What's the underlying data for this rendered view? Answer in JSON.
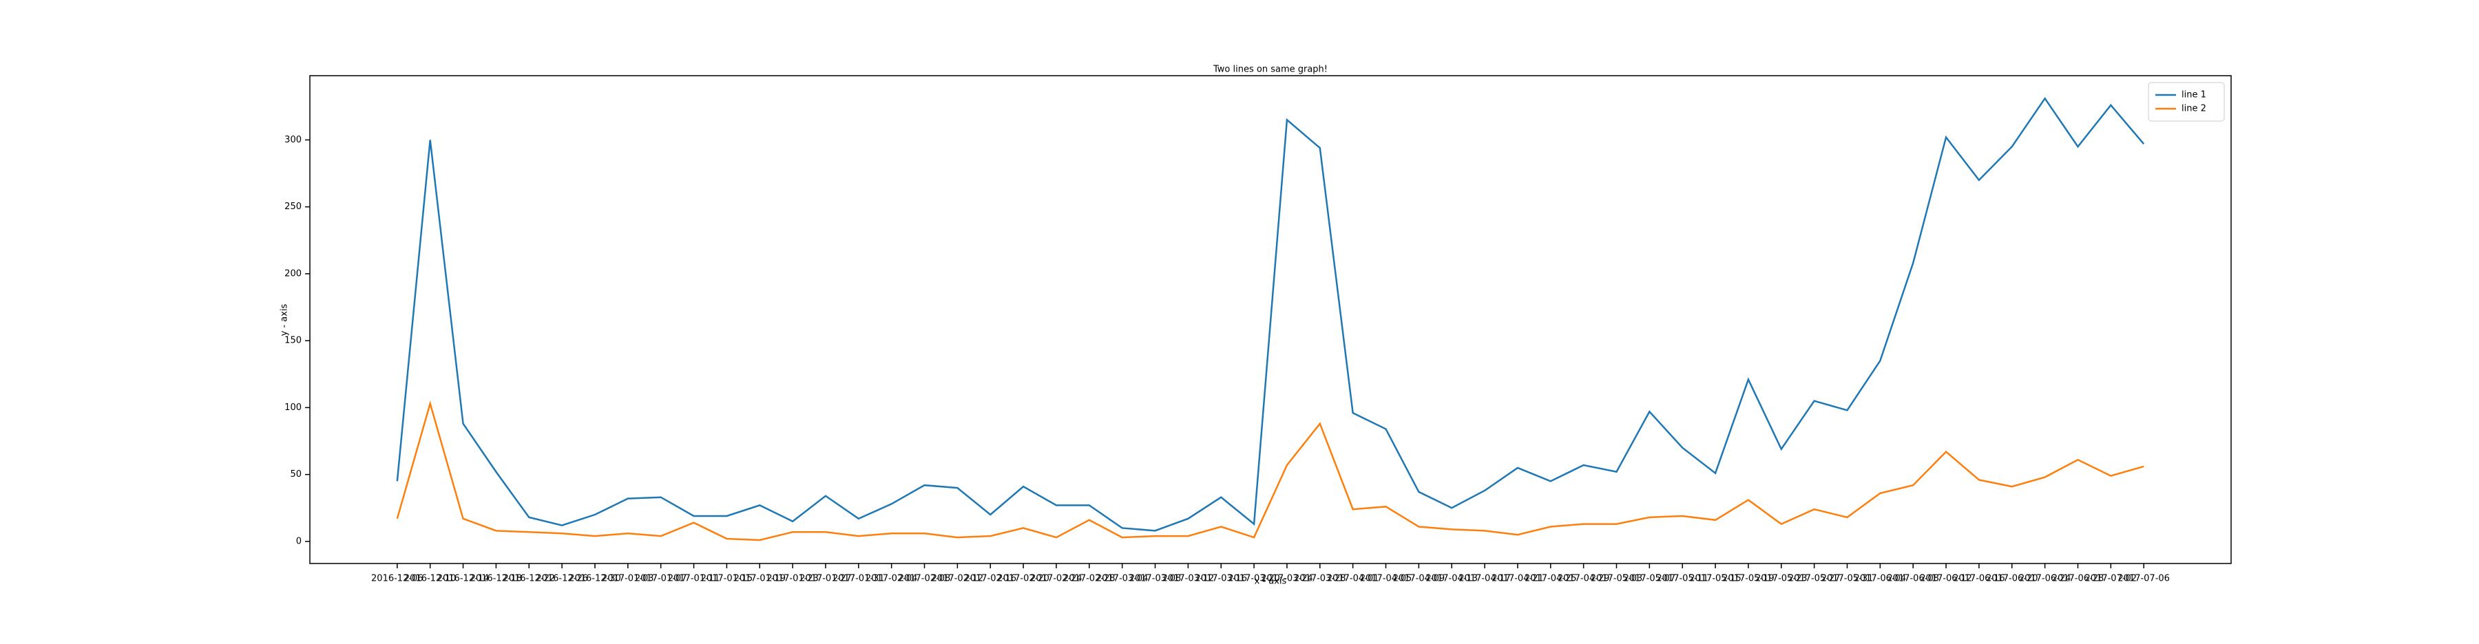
{
  "chart_data": {
    "type": "line",
    "title": "Two lines on same graph!",
    "xlabel": "x - axis",
    "ylabel": "y - axis",
    "categories": [
      "2016-12-06",
      "2016-12-10",
      "2016-12-14",
      "2016-12-18",
      "2016-12-22",
      "2016-12-26",
      "2016-12-30",
      "2017-01-03",
      "2017-01-07",
      "2017-01-11",
      "2017-01-15",
      "2017-01-19",
      "2017-01-23",
      "2017-01-27",
      "2017-01-31",
      "2017-02-04",
      "2017-02-08",
      "2017-02-12",
      "2017-02-16",
      "2017-02-20",
      "2017-02-24",
      "2017-02-28",
      "2017-03-04",
      "2017-03-08",
      "2017-03-12",
      "2017-03-16",
      "2017-03-20",
      "2017-03-24",
      "2017-03-28",
      "2017-04-01",
      "2017-04-05",
      "2017-04-09",
      "2017-04-13",
      "2017-04-17",
      "2017-04-21",
      "2017-04-25",
      "2017-04-29",
      "2017-05-03",
      "2017-05-07",
      "2017-05-11",
      "2017-05-15",
      "2017-05-19",
      "2017-05-23",
      "2017-05-27",
      "2017-05-31",
      "2017-06-04",
      "2017-06-08",
      "2017-06-12",
      "2017-06-16",
      "2017-06-20",
      "2017-06-24",
      "2017-06-28",
      "2017-07-02",
      "2017-07-06"
    ],
    "series": [
      {
        "name": "line 1",
        "color": "#1f77b4",
        "values": [
          45,
          300,
          88,
          52,
          18,
          12,
          20,
          32,
          33,
          19,
          19,
          27,
          15,
          34,
          17,
          28,
          42,
          40,
          20,
          41,
          27,
          27,
          10,
          8,
          17,
          33,
          13,
          315,
          294,
          96,
          84,
          37,
          25,
          38,
          55,
          45,
          57,
          52,
          97,
          70,
          51,
          121,
          69,
          105,
          98,
          135,
          208,
          302,
          270,
          295,
          331,
          295,
          326,
          297
        ]
      },
      {
        "name": "line 2",
        "color": "#ff7f0e",
        "values": [
          17,
          103,
          17,
          8,
          7,
          6,
          4,
          6,
          4,
          14,
          2,
          1,
          7,
          7,
          4,
          6,
          6,
          3,
          4,
          10,
          3,
          16,
          3,
          4,
          4,
          11,
          3,
          57,
          88,
          24,
          26,
          11,
          9,
          8,
          5,
          11,
          13,
          13,
          18,
          19,
          16,
          31,
          13,
          24,
          18,
          36,
          42,
          67,
          46,
          41,
          48,
          61,
          49,
          56
        ]
      }
    ],
    "ylim": [
      -16.5,
      348
    ],
    "yticks": [
      0,
      50,
      100,
      150,
      200,
      250,
      300
    ],
    "legend": "upper right"
  }
}
